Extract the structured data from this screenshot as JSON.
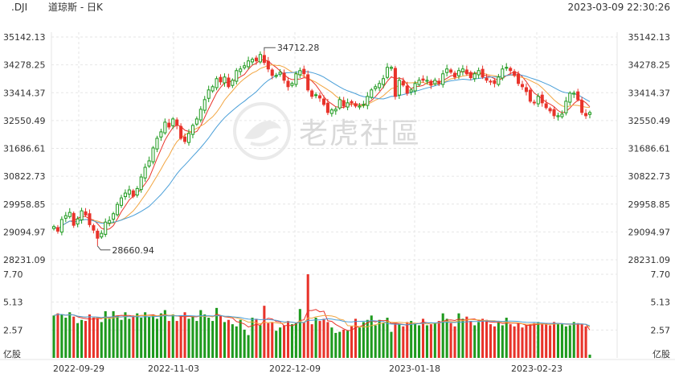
{
  "header": {
    "symbol": ".DJI",
    "name": "道琼斯 - 日K",
    "timestamp": "2023-03-09 22:30:26"
  },
  "watermark": {
    "text": "老虎社區",
    "icon": "tiger-logo-icon"
  },
  "colors": {
    "up": "#1e9a1e",
    "down": "#e8332a",
    "ma_blue": "#4a9fd8",
    "ma_orange": "#f2a541",
    "ma_red": "#e8332a",
    "grid": "#e6e6e6"
  },
  "chart_data": [
    {
      "type": "candlestick",
      "title": "",
      "y_ticks": [
        "35142.13",
        "34278.25",
        "33414.37",
        "32550.49",
        "31686.61",
        "30822.73",
        "29958.85",
        "29094.97",
        "28231.09"
      ],
      "ylim": [
        28231.09,
        35142.13
      ],
      "x_ticks": [
        "2022-09-29",
        "2022-11-03",
        "2022-12-09",
        "2023-01-18",
        "2023-02-23"
      ],
      "annotations": [
        {
          "label": "34712.28",
          "value": 34712.28,
          "date": "2022-12-13"
        },
        {
          "label": "28660.94",
          "value": 28660.94,
          "date": "2022-10-13"
        }
      ],
      "grid": true,
      "legend": "none",
      "close": [
        29260,
        29120,
        29480,
        29600,
        29700,
        29300,
        29500,
        29750,
        29620,
        29320,
        29150,
        28900,
        29050,
        29400,
        29450,
        29660,
        29950,
        30150,
        30300,
        30400,
        30200,
        30440,
        30800,
        31100,
        31300,
        31700,
        32000,
        32200,
        32500,
        32350,
        32600,
        32400,
        32000,
        31900,
        32150,
        32400,
        32600,
        32900,
        33200,
        33500,
        33600,
        33850,
        33750,
        33900,
        33600,
        33800,
        34100,
        34150,
        34250,
        34400,
        34450,
        34400,
        34600,
        34350,
        34150,
        33950,
        33950,
        34050,
        33800,
        33600,
        33700,
        34000,
        34100,
        34000,
        33500,
        33300,
        33350,
        33250,
        33050,
        32800,
        32880,
        32900,
        33200,
        33000,
        33100,
        33100,
        33000,
        33000,
        33050,
        33300,
        33500,
        33600,
        33700,
        33850,
        34200,
        34200,
        33300,
        33800,
        33650,
        33400,
        33500,
        33700,
        33800,
        33800,
        33800,
        33650,
        33800,
        33700,
        34000,
        34150,
        34050,
        33900,
        34100,
        34150,
        34000,
        33880,
        34000,
        34100,
        33900,
        33800,
        33750,
        33700,
        33900,
        34150,
        34200,
        34100,
        33950,
        33700,
        33600,
        33450,
        33150,
        33100,
        33300,
        33100,
        32950,
        32850,
        32700,
        32700,
        32750,
        33150,
        33400,
        33400,
        33200,
        32800,
        32700,
        32800
      ],
      "volume": [
        3.9,
        4.1,
        4.0,
        3.7,
        4.2,
        3.8,
        3.2,
        3.5,
        3.4,
        4.0,
        3.7,
        3.6,
        3.3,
        4.3,
        3.6,
        4.3,
        3.9,
        3.5,
        4.2,
        3.6,
        3.9,
        4.1,
        3.7,
        4.2,
        3.8,
        4.0,
        3.6,
        4.1,
        4.4,
        3.4,
        4.0,
        3.4,
        3.9,
        4.2,
        3.6,
        3.8,
        3.4,
        4.4,
        4.0,
        3.7,
        3.4,
        4.6,
        3.9,
        3.3,
        3.5,
        3.1,
        2.9,
        3.5,
        2.6,
        2.1,
        3.7,
        3.6,
        3.0,
        4.8,
        3.2,
        3.3,
        2.5,
        2.8,
        3.0,
        3.4,
        3.1,
        3.2,
        4.5,
        3.3,
        7.7,
        3.1,
        3.7,
        3.4,
        3.6,
        3.3,
        2.8,
        2.3,
        2.4,
        2.6,
        2.5,
        2.9,
        3.6,
        2.8,
        3.3,
        3.5,
        3.9,
        3.0,
        3.5,
        3.2,
        3.7,
        2.4,
        3.3,
        3.1,
        2.9,
        3.3,
        3.4,
        3.2,
        3.0,
        3.6,
        3.0,
        3.1,
        3.2,
        3.4,
        4.1,
        3.6,
        3.2,
        2.9,
        4.1,
        3.6,
        3.8,
        3.4,
        3.0,
        3.3,
        3.6,
        3.5,
        3.1,
        2.9,
        3.3,
        3.0,
        3.7,
        3.1,
        2.9,
        3.2,
        2.8,
        3.0,
        3.1,
        3.2,
        3.3,
        3.1,
        3.2,
        3.0,
        3.3,
        3.2,
        3.1,
        2.9,
        3.0,
        3.3,
        3.2,
        3.1,
        2.9,
        0.3
      ]
    },
    {
      "type": "bar",
      "title": "",
      "y_ticks": [
        "7.70",
        "5.13",
        "2.57",
        "亿股"
      ],
      "ylim": [
        0,
        7.7
      ],
      "x_ticks": [
        "2022-09-29",
        "2022-11-03",
        "2022-12-09",
        "2023-01-18",
        "2023-02-23"
      ]
    }
  ]
}
